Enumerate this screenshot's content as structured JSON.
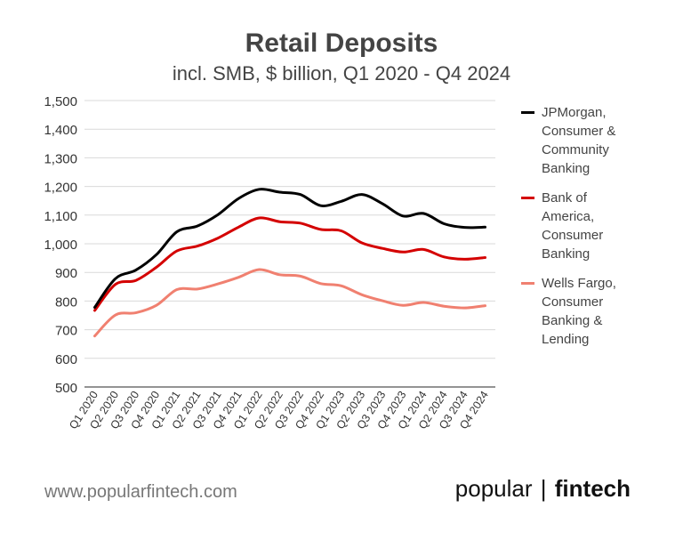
{
  "chart_data": {
    "type": "line",
    "title": "Retail Deposits",
    "subtitle": "incl. SMB, $ billion, Q1 2020 - Q4 2024",
    "categories": [
      "Q1 2020",
      "Q2 2020",
      "Q3 2020",
      "Q4 2020",
      "Q1 2021",
      "Q2 2021",
      "Q3 2021",
      "Q4 2021",
      "Q1 2022",
      "Q2 2022",
      "Q3 2022",
      "Q4 2022",
      "Q1 2023",
      "Q2 2023",
      "Q3 2023",
      "Q4 2023",
      "Q1 2024",
      "Q2 2024",
      "Q3 2024",
      "Q4 2024"
    ],
    "y_ticks": [
      "500",
      "600",
      "700",
      "800",
      "900",
      "1,000",
      "1,100",
      "1,200",
      "1,300",
      "1,400",
      "1,500"
    ],
    "ylim": [
      500,
      1500
    ],
    "grid": true,
    "legend_position": "right",
    "series": [
      {
        "name": "JPMorgan, Consumer & Community Banking",
        "color": "#000000",
        "values": [
          778,
          878,
          908,
          962,
          1042,
          1062,
          1102,
          1158,
          1190,
          1180,
          1172,
          1133,
          1148,
          1172,
          1140,
          1097,
          1106,
          1070,
          1057,
          1058
        ]
      },
      {
        "name": "Bank of America, Consumer Banking",
        "color": "#d40000",
        "values": [
          767,
          858,
          872,
          918,
          975,
          992,
          1020,
          1058,
          1090,
          1077,
          1072,
          1050,
          1045,
          1003,
          984,
          971,
          980,
          954,
          946,
          952
        ]
      },
      {
        "name": "Wells Fargo, Consumer Banking & Lending",
        "color": "#f08070",
        "values": [
          678,
          751,
          759,
          785,
          840,
          842,
          860,
          883,
          910,
          892,
          887,
          861,
          853,
          822,
          801,
          785,
          795,
          782,
          776,
          784
        ]
      }
    ]
  },
  "legend": [
    {
      "lines": [
        "JPMorgan,",
        "Consumer &",
        "Community",
        "Banking"
      ],
      "color": "#000000"
    },
    {
      "lines": [
        "Bank of",
        "America,",
        "Consumer",
        "Banking"
      ],
      "color": "#d40000"
    },
    {
      "lines": [
        "Wells Fargo,",
        "Consumer",
        "Banking &",
        "Lending"
      ],
      "color": "#f08070"
    }
  ],
  "footer": {
    "url": "www.popularfintech.com",
    "brand_left": "popular",
    "brand_sep": "|",
    "brand_right": "fintech"
  }
}
